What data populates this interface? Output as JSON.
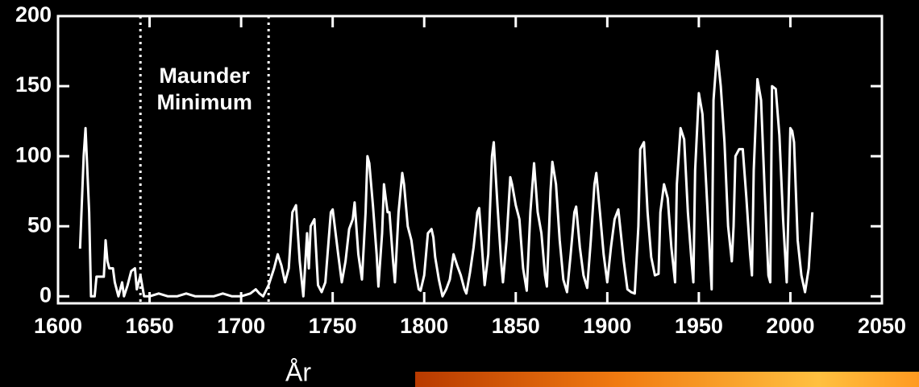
{
  "chart_data": {
    "type": "line",
    "x_label": "År",
    "annotation": {
      "lines": [
        "Maunder",
        "Minimum"
      ],
      "start": 1645,
      "end": 1715
    },
    "color": "#ffffff",
    "xlim": [
      1600,
      2050
    ],
    "xticks": [
      1600,
      1650,
      1700,
      1750,
      1800,
      1850,
      1900,
      1950,
      2000,
      2050
    ],
    "ylim": [
      -5,
      200
    ],
    "yticks": [
      0,
      50,
      100,
      150,
      200
    ],
    "x": [
      1612,
      1614,
      1615,
      1617,
      1618,
      1620,
      1621,
      1625,
      1626,
      1627,
      1628,
      1630,
      1631,
      1633,
      1635,
      1636,
      1638,
      1640,
      1642,
      1643,
      1645,
      1647,
      1650,
      1655,
      1660,
      1665,
      1670,
      1675,
      1680,
      1685,
      1690,
      1695,
      1700,
      1705,
      1708,
      1710,
      1712,
      1715,
      1718,
      1720,
      1722,
      1724,
      1726,
      1728,
      1730,
      1732,
      1734,
      1736,
      1737,
      1738,
      1740,
      1742,
      1744,
      1746,
      1749,
      1750,
      1753,
      1755,
      1757,
      1759,
      1761,
      1762,
      1764,
      1766,
      1768,
      1769,
      1770,
      1772,
      1774,
      1775,
      1777,
      1778,
      1779,
      1780,
      1781,
      1783,
      1784,
      1786,
      1788,
      1789,
      1791,
      1793,
      1795,
      1797,
      1798,
      1800,
      1802,
      1804,
      1805,
      1806,
      1808,
      1810,
      1812,
      1814,
      1816,
      1818,
      1820,
      1822,
      1823,
      1825,
      1827,
      1829,
      1830,
      1833,
      1835,
      1837,
      1838,
      1840,
      1842,
      1843,
      1845,
      1847,
      1848,
      1850,
      1852,
      1854,
      1856,
      1858,
      1860,
      1862,
      1864,
      1866,
      1867,
      1869,
      1870,
      1872,
      1874,
      1876,
      1878,
      1880,
      1882,
      1883,
      1885,
      1887,
      1889,
      1891,
      1893,
      1894,
      1896,
      1898,
      1900,
      1902,
      1904,
      1906,
      1907,
      1909,
      1911,
      1913,
      1915,
      1917,
      1918,
      1920,
      1922,
      1924,
      1926,
      1928,
      1929,
      1931,
      1933,
      1935,
      1937,
      1938,
      1940,
      1942,
      1944,
      1946,
      1947,
      1948,
      1950,
      1952,
      1954,
      1956,
      1957,
      1958,
      1960,
      1962,
      1964,
      1966,
      1968,
      1969,
      1970,
      1972,
      1974,
      1976,
      1978,
      1979,
      1980,
      1982,
      1984,
      1986,
      1988,
      1989,
      1990,
      1992,
      1994,
      1996,
      1998,
      2000,
      2001,
      2002,
      2004,
      2006,
      2008,
      2010,
      2012
    ],
    "values": [
      34,
      100,
      120,
      60,
      0,
      0,
      14,
      14,
      40,
      25,
      20,
      20,
      10,
      0,
      10,
      0,
      8,
      18,
      20,
      5,
      15,
      0,
      0,
      2,
      0,
      0,
      2,
      0,
      0,
      0,
      2,
      0,
      0,
      2,
      5,
      2,
      0,
      8,
      20,
      30,
      22,
      10,
      20,
      60,
      65,
      25,
      0,
      45,
      20,
      50,
      55,
      8,
      3,
      10,
      60,
      62,
      30,
      10,
      25,
      48,
      55,
      67,
      30,
      12,
      60,
      100,
      95,
      65,
      30,
      7,
      45,
      80,
      70,
      60,
      60,
      25,
      10,
      60,
      88,
      80,
      50,
      40,
      20,
      5,
      4,
      15,
      45,
      48,
      42,
      28,
      12,
      0,
      5,
      12,
      30,
      22,
      15,
      5,
      2,
      17,
      35,
      60,
      63,
      8,
      30,
      100,
      110,
      65,
      25,
      10,
      40,
      85,
      80,
      65,
      55,
      20,
      4,
      60,
      95,
      60,
      45,
      15,
      7,
      75,
      96,
      80,
      40,
      12,
      3,
      30,
      60,
      64,
      35,
      15,
      6,
      40,
      80,
      88,
      60,
      30,
      10,
      35,
      55,
      62,
      50,
      25,
      5,
      3,
      2,
      50,
      105,
      110,
      60,
      28,
      15,
      16,
      60,
      80,
      70,
      35,
      10,
      80,
      120,
      112,
      60,
      25,
      10,
      90,
      145,
      130,
      80,
      30,
      5,
      140,
      175,
      150,
      110,
      50,
      25,
      50,
      100,
      105,
      105,
      70,
      30,
      15,
      90,
      155,
      140,
      75,
      15,
      10,
      150,
      148,
      115,
      55,
      10,
      120,
      118,
      110,
      40,
      15,
      3,
      20,
      60
    ]
  }
}
